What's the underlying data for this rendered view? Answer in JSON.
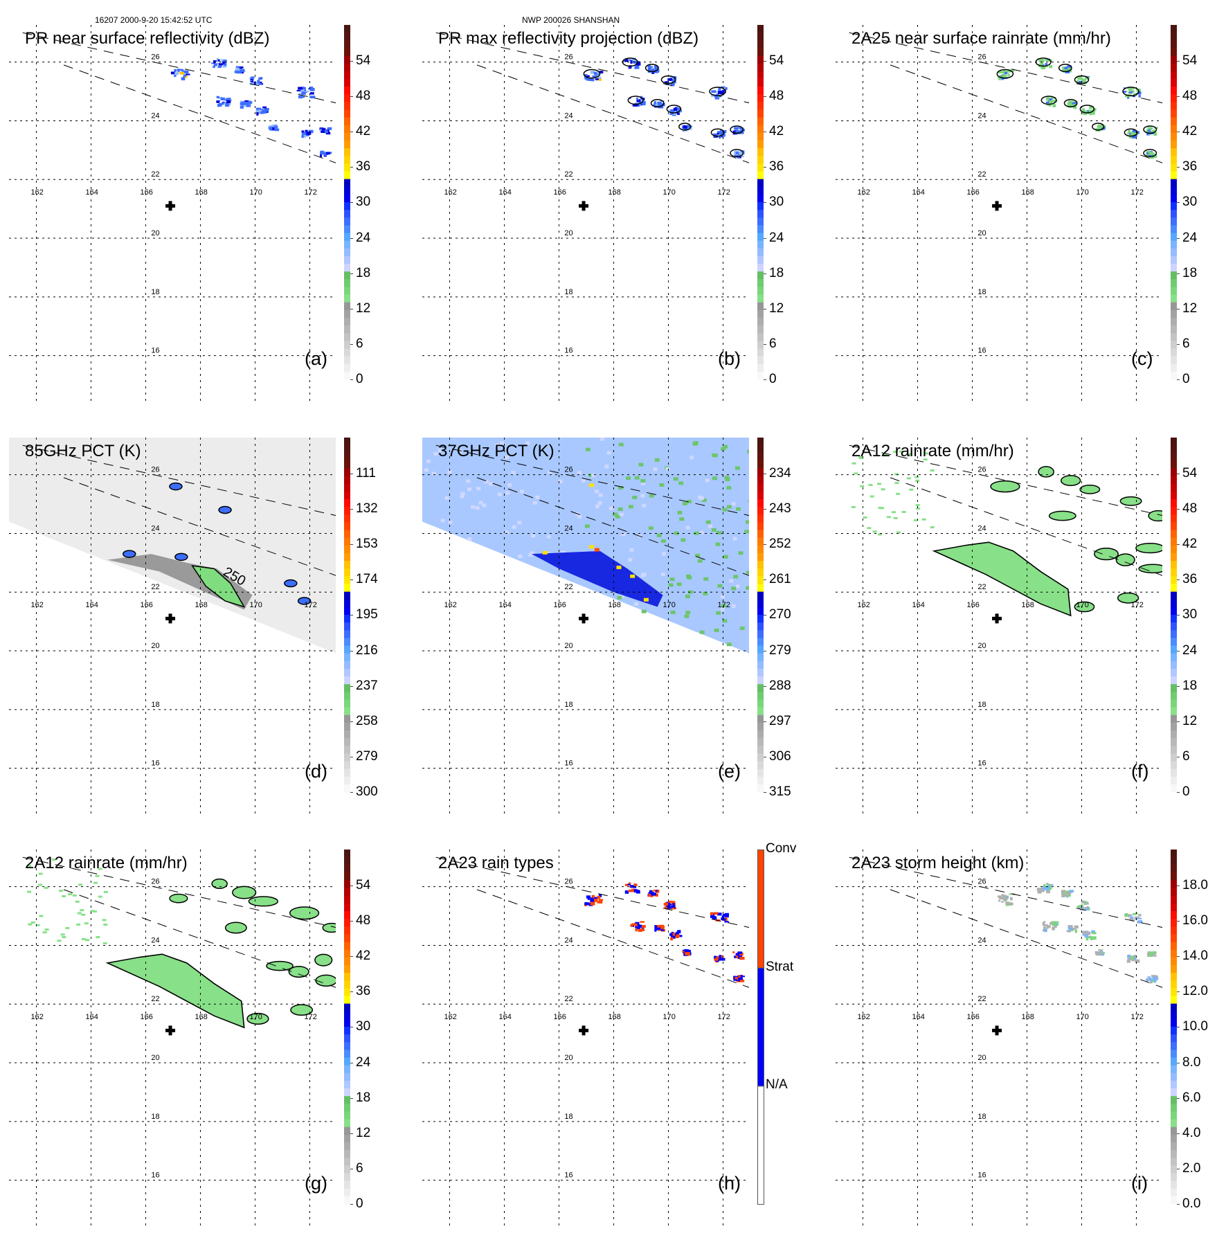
{
  "header": {
    "left": "16207 2000-9-20 15:42:52 UTC",
    "center": "NWP 200026 SHANSHAN"
  },
  "map": {
    "lon_ticks": [
      "162",
      "164",
      "166",
      "168",
      "170",
      "172"
    ],
    "lat_ticks": [
      "26",
      "24",
      "22",
      "20",
      "18",
      "16"
    ],
    "storm_center_marker": "plus-icon",
    "storm_center": {
      "lon": 166.9,
      "lat": 21.1
    }
  },
  "colors": {
    "ramp": [
      "#f8f8f8",
      "#eeeeee",
      "#e4e4e4",
      "#d9d9d9",
      "#cecece",
      "#c3c3c3",
      "#b8b8b8",
      "#adadad",
      "#a2a2a2",
      "#979797",
      "#88e088",
      "#7ad67a",
      "#6fcc6f",
      "#64bf64",
      "#cdd4ff",
      "#b0c8ff",
      "#94bcff",
      "#78b4ff",
      "#55a8ff",
      "#4a8cff",
      "#3c6eff",
      "#2f52ff",
      "#1030ff",
      "#0000f0",
      "#0000d8",
      "#0000c0",
      "#ffff00",
      "#ffe600",
      "#ffd400",
      "#ffc200",
      "#ff9c00",
      "#ff8a00",
      "#ff7800",
      "#ff6200",
      "#ff4400",
      "#ff3000",
      "#ff1c00",
      "#ff0a00",
      "#d80000",
      "#c40000",
      "#b00000",
      "#9c0000",
      "#6a1208",
      "#5e140e",
      "#531410",
      "#4a1410"
    ],
    "raintype_conv": "#ff4400",
    "raintype_strat": "#0000ff",
    "raintype_na": "#ffffff"
  },
  "panels": [
    {
      "id": "a",
      "title": "PR near surface reflectivity (dBZ)",
      "label": "(a)",
      "colorbar_ticks": [
        "54",
        "48",
        "42",
        "36",
        "30",
        "24",
        "18",
        "12",
        "6",
        "0"
      ],
      "swath": "pr",
      "field": "pr_dbz"
    },
    {
      "id": "b",
      "title": "PR max reflectivity projection (dBZ)",
      "label": "(b)",
      "colorbar_ticks": [
        "54",
        "48",
        "42",
        "36",
        "30",
        "24",
        "18",
        "12",
        "6",
        "0"
      ],
      "swath": "pr",
      "field": "pr_max"
    },
    {
      "id": "c",
      "title": "2A25 near surface rainrate (mm/hr)",
      "label": "(c)",
      "colorbar_ticks": [
        "54",
        "48",
        "42",
        "36",
        "30",
        "24",
        "18",
        "12",
        "6",
        "0"
      ],
      "swath": "pr",
      "field": "pr_rain"
    },
    {
      "id": "d",
      "title": "85GHz PCT (K)",
      "label": "(d)",
      "colorbar_ticks": [
        "111",
        "132",
        "153",
        "174",
        "195",
        "216",
        "237",
        "258",
        "279",
        "300"
      ],
      "swath": "tmi",
      "field": "pct85",
      "contour_label": "250"
    },
    {
      "id": "e",
      "title": "37GHz PCT (K)",
      "label": "(e)",
      "colorbar_ticks": [
        "234",
        "243",
        "252",
        "261",
        "270",
        "279",
        "288",
        "297",
        "306",
        "315"
      ],
      "swath": "tmi",
      "field": "pct37"
    },
    {
      "id": "f",
      "title": "2A12 rainrate (mm/hr)",
      "label": "(f)",
      "colorbar_ticks": [
        "54",
        "48",
        "42",
        "36",
        "30",
        "24",
        "18",
        "12",
        "6",
        "0"
      ],
      "swath": "tmi",
      "field": "tmi_rain"
    },
    {
      "id": "g",
      "title": "2A12 rainrate (mm/hr)",
      "label": "(g)",
      "colorbar_ticks": [
        "54",
        "48",
        "42",
        "36",
        "30",
        "24",
        "18",
        "12",
        "6",
        "0"
      ],
      "swath": "tmi",
      "field": "tmi_rain2"
    },
    {
      "id": "h",
      "title": "2A23 rain types",
      "label": "(h)",
      "colorbar_categories": [
        "Conv",
        "Strat",
        "N/A"
      ],
      "swath": "pr",
      "field": "raintype"
    },
    {
      "id": "i",
      "title": "2A23 storm height (km)",
      "label": "(i)",
      "colorbar_ticks": [
        "18.0",
        "16.0",
        "14.0",
        "12.0",
        "10.0",
        "8.0",
        "6.0",
        "4.0",
        "2.0",
        "0.0"
      ],
      "swath": "pr",
      "field": "height"
    }
  ]
}
